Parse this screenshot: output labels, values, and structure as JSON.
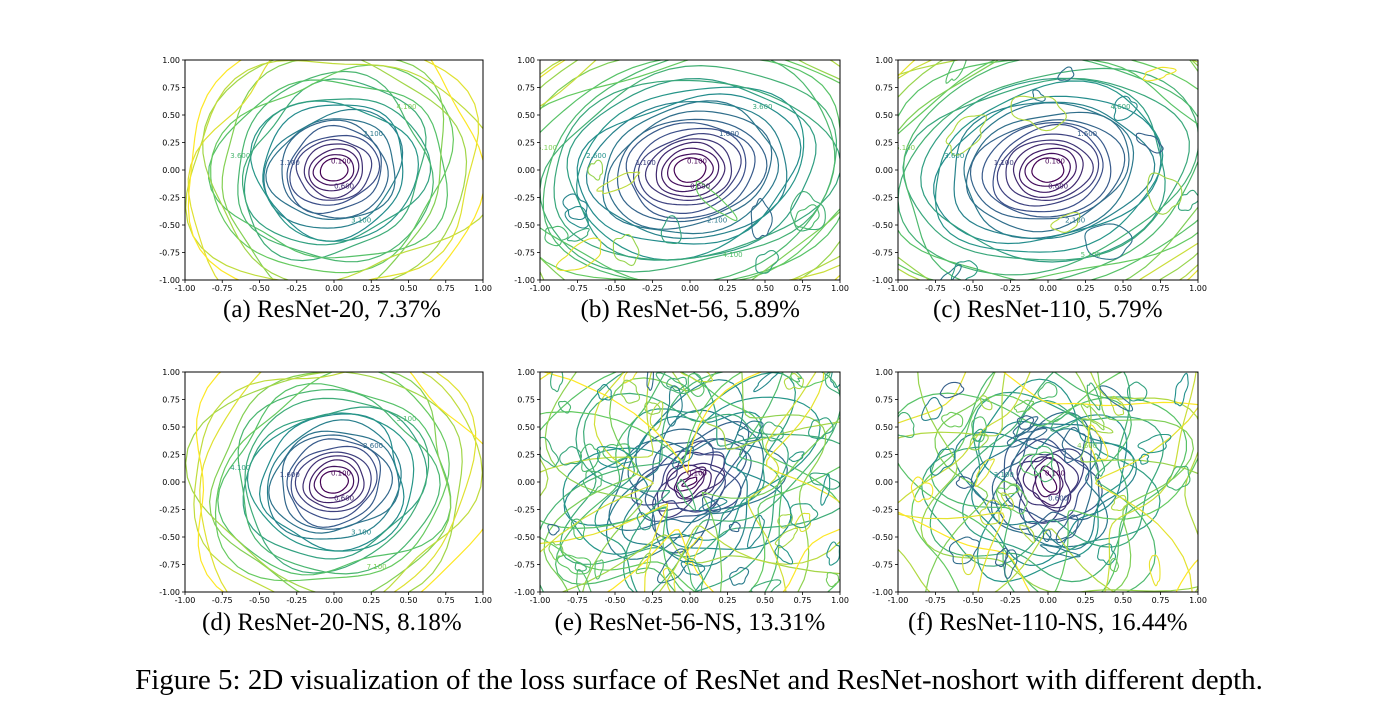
{
  "figure": {
    "caption": "Figure 5: 2D visualization of the loss surface of ResNet and ResNet-noshort with different depth.",
    "colormap": [
      "#440154",
      "#3b528b",
      "#21918c",
      "#5ec962",
      "#fde725"
    ]
  },
  "chart_data": [
    {
      "type": "contour",
      "caption": "(a) ResNet-20, 7.37%",
      "xlim": [
        -1.0,
        1.0
      ],
      "ylim": [
        -1.0,
        1.0
      ],
      "x_ticks": [
        "-1.00",
        "-0.75",
        "-0.50",
        "-0.25",
        "0.00",
        "0.25",
        "0.50",
        "0.75",
        "1.00"
      ],
      "y_ticks": [
        "-1.00",
        "-0.75",
        "-0.50",
        "-0.25",
        "0.00",
        "0.25",
        "0.50",
        "0.75",
        "1.00"
      ],
      "minimum": [
        0.0,
        0.0
      ],
      "contour_labels": [
        "0.100",
        "0.600",
        "1.100",
        "2.100",
        "3.100",
        "3.600",
        "4.100"
      ],
      "style": "smooth"
    },
    {
      "type": "contour",
      "caption": "(b) ResNet-56, 5.89%",
      "xlim": [
        -1.0,
        1.0
      ],
      "ylim": [
        -1.0,
        1.0
      ],
      "x_ticks": [
        "-1.00",
        "-0.75",
        "-0.50",
        "-0.25",
        "0.00",
        "0.25",
        "0.50",
        "0.75",
        "1.00"
      ],
      "y_ticks": [
        "-1.00",
        "-0.75",
        "-0.50",
        "-0.25",
        "0.00",
        "0.25",
        "0.50",
        "0.75",
        "1.00"
      ],
      "minimum": [
        0.0,
        0.0
      ],
      "contour_labels": [
        "0.100",
        "0.600",
        "1.100",
        "1.600",
        "2.100",
        "2.600",
        "3.600",
        "4.100",
        "5.100"
      ],
      "style": "wide"
    },
    {
      "type": "contour",
      "caption": "(c) ResNet-110, 5.79%",
      "xlim": [
        -1.0,
        1.0
      ],
      "ylim": [
        -1.0,
        1.0
      ],
      "x_ticks": [
        "-1.00",
        "-0.75",
        "-0.50",
        "-0.25",
        "0.00",
        "0.25",
        "0.50",
        "0.75",
        "1.00"
      ],
      "y_ticks": [
        "-1.00",
        "-0.75",
        "-0.50",
        "-0.25",
        "0.00",
        "0.25",
        "0.50",
        "0.75",
        "1.00"
      ],
      "minimum": [
        0.0,
        0.0
      ],
      "contour_labels": [
        "0.100",
        "0.600",
        "1.100",
        "1.600",
        "2.100",
        "3.600",
        "4.600",
        "5.100",
        "6.100"
      ],
      "style": "wide"
    },
    {
      "type": "contour",
      "caption": "(d) ResNet-20-NS, 8.18%",
      "xlim": [
        -1.0,
        1.0
      ],
      "ylim": [
        -1.0,
        1.0
      ],
      "x_ticks": [
        "-1.00",
        "-0.75",
        "-0.50",
        "-0.25",
        "0.00",
        "0.25",
        "0.50",
        "0.75",
        "1.00"
      ],
      "y_ticks": [
        "-1.00",
        "-0.75",
        "-0.50",
        "-0.25",
        "0.00",
        "0.25",
        "0.50",
        "0.75",
        "1.00"
      ],
      "minimum": [
        0.0,
        0.0
      ],
      "contour_labels": [
        "0.100",
        "0.600",
        "1.600",
        "2.600",
        "3.100",
        "4.100",
        "5.100",
        "7.100"
      ],
      "style": "smooth"
    },
    {
      "type": "contour",
      "caption": "(e) ResNet-56-NS, 13.31%",
      "xlim": [
        -1.0,
        1.0
      ],
      "ylim": [
        -1.0,
        1.0
      ],
      "x_ticks": [
        "-1.00",
        "-0.75",
        "-0.50",
        "-0.25",
        "0.00",
        "0.25",
        "0.50",
        "0.75",
        "1.00"
      ],
      "y_ticks": [
        "-1.00",
        "-0.75",
        "-0.50",
        "-0.25",
        "0.00",
        "0.25",
        "0.50",
        "0.75",
        "1.00"
      ],
      "minimum": [
        0.0,
        0.0
      ],
      "contour_labels": [
        "0.100"
      ],
      "style": "chaotic"
    },
    {
      "type": "contour",
      "caption": "(f) ResNet-110-NS, 16.44%",
      "xlim": [
        -1.0,
        1.0
      ],
      "ylim": [
        -1.0,
        1.0
      ],
      "x_ticks": [
        "-1.00",
        "-0.75",
        "-0.50",
        "-0.25",
        "0.00",
        "0.25",
        "0.50",
        "0.75",
        "1.00"
      ],
      "y_ticks": [
        "-1.00",
        "-0.75",
        "-0.50",
        "-0.25",
        "0.00",
        "0.25",
        "0.50",
        "0.75",
        "1.00"
      ],
      "minimum": [
        0.0,
        0.0
      ],
      "contour_labels": [
        "0.100",
        "0.600",
        "3.100",
        "4.600"
      ],
      "style": "chaotic-blob"
    }
  ]
}
